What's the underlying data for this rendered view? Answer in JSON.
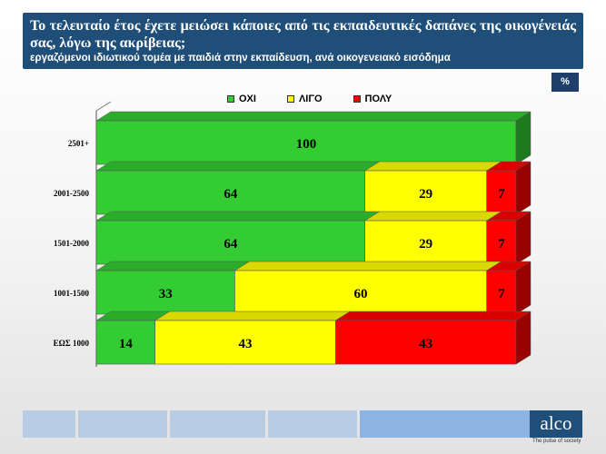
{
  "header": {
    "title": "Το τελευταίο έτος έχετε μειώσει κάποιες από τις εκπαιδευτικές δαπάνες της οικογένειάς σας, λόγω της ακρίβειας;",
    "subtitle": "εργαζόμενοι ιδιωτικού τομέα με παιδιά στην εκπαίδευση, ανά οικογενειακό εισόδημα"
  },
  "unit_label": "%",
  "colors": {
    "header_bg": "#1f4e79",
    "oxi": "#33cc33",
    "ligo": "#ffff00",
    "poly": "#ff0000"
  },
  "chart_data": {
    "type": "bar",
    "orientation": "horizontal",
    "stacked": true,
    "categories": [
      "2501+",
      "2001-2500",
      "1501-2000",
      "1001-1500",
      "ΕΩΣ 1000"
    ],
    "series": [
      {
        "name": "ΟΧΙ",
        "color": "#33cc33",
        "values": [
          100,
          64,
          64,
          33,
          14
        ]
      },
      {
        "name": "ΛΙΓΟ",
        "color": "#ffff00",
        "values": [
          0,
          29,
          29,
          60,
          43
        ]
      },
      {
        "name": "ΠΟΛΥ",
        "color": "#ff0000",
        "values": [
          0,
          7,
          7,
          7,
          43
        ]
      }
    ],
    "xlim": [
      0,
      100
    ],
    "legend_position": "top",
    "grid": false
  },
  "footer": {
    "segment_colors": [
      "#b8cce4",
      "#b8cce4",
      "#b8cce4",
      "#b8cce4",
      "#8db3e2"
    ],
    "logo_text": "alco",
    "tagline": "The pulse of society"
  }
}
